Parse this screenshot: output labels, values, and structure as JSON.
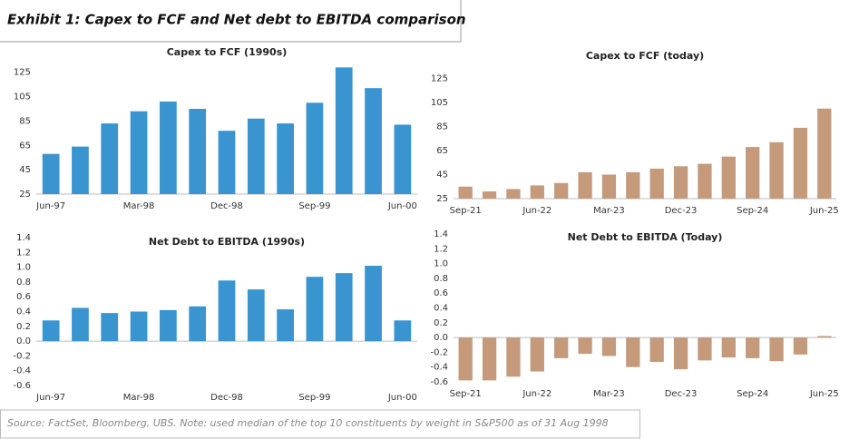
{
  "title": "Exhibit 1: Capex to FCF and Net debt to EBITDA comparison",
  "source": "Source: FactSet, Bloomberg, UBS. Note: used median of the top 10 constituents by weight in S&P500 as of 31 Aug 1998",
  "chart_data": [
    {
      "type": "bar",
      "title": "Capex to FCF (1990s)",
      "categories": [
        "Jun-97",
        null,
        null,
        "Mar-98",
        null,
        null,
        "Dec-98",
        null,
        null,
        "Sep-99",
        null,
        null,
        "Jun-00"
      ],
      "values": [
        58,
        64,
        83,
        93,
        101,
        95,
        77,
        87,
        83,
        100,
        129,
        112,
        82
      ],
      "color": "#3a94d0",
      "ylim": [
        25,
        130
      ],
      "yticks": [
        25,
        45,
        65,
        85,
        105,
        125
      ]
    },
    {
      "type": "bar",
      "title": "Capex to FCF (today)",
      "categories": [
        "Sep-21",
        null,
        null,
        "Jun-22",
        null,
        null,
        "Mar-23",
        null,
        null,
        "Dec-23",
        null,
        null,
        "Sep-24",
        null,
        null,
        "Jun-25"
      ],
      "values": [
        35,
        31,
        33,
        36,
        38,
        47,
        45,
        47,
        50,
        52,
        54,
        60,
        68,
        72,
        84,
        100
      ],
      "color": "#c49a7b",
      "ylim": [
        25,
        130
      ],
      "yticks": [
        25,
        45,
        65,
        85,
        105,
        125
      ]
    },
    {
      "type": "bar",
      "title": "Net Debt to EBITDA (1990s)",
      "categories": [
        "Jun-97",
        null,
        null,
        "Mar-98",
        null,
        null,
        "Dec-98",
        null,
        null,
        "Sep-99",
        null,
        null,
        "Jun-00"
      ],
      "values": [
        0.28,
        0.45,
        0.38,
        0.4,
        0.42,
        0.47,
        0.82,
        0.7,
        0.43,
        0.87,
        0.92,
        1.02,
        0.28
      ],
      "color": "#3a94d0",
      "ylim": [
        -0.6,
        1.4
      ],
      "yticks": [
        1.4,
        1.2,
        {
          "value": 1,
          "label": "1.0"
        },
        0.8,
        0.6,
        0.4,
        0.2,
        {
          "value": 0,
          "label": "0.0"
        },
        -0.2,
        -0.4,
        -0.6
      ]
    },
    {
      "type": "bar",
      "title": "Net Debt to EBITDA (Today)",
      "categories": [
        "Sep-21",
        null,
        null,
        "Jun-22",
        null,
        null,
        "Mar-23",
        null,
        null,
        "Dec-23",
        null,
        null,
        "Sep-24",
        null,
        null,
        "Jun-25"
      ],
      "values": [
        -0.58,
        -0.58,
        -0.53,
        -0.46,
        -0.28,
        -0.22,
        -0.25,
        -0.4,
        -0.33,
        -0.43,
        -0.31,
        -0.27,
        -0.28,
        -0.32,
        -0.23,
        0.02
      ],
      "color": "#c49a7b",
      "ylim": [
        -0.6,
        1.4
      ],
      "yticks": [
        1.4,
        1.2,
        {
          "value": 1,
          "label": "1.0"
        },
        0.8,
        0.6,
        0.4,
        0.2,
        {
          "value": 0,
          "label": "0.0"
        },
        -0.2,
        -0.4,
        -0.6
      ]
    }
  ]
}
